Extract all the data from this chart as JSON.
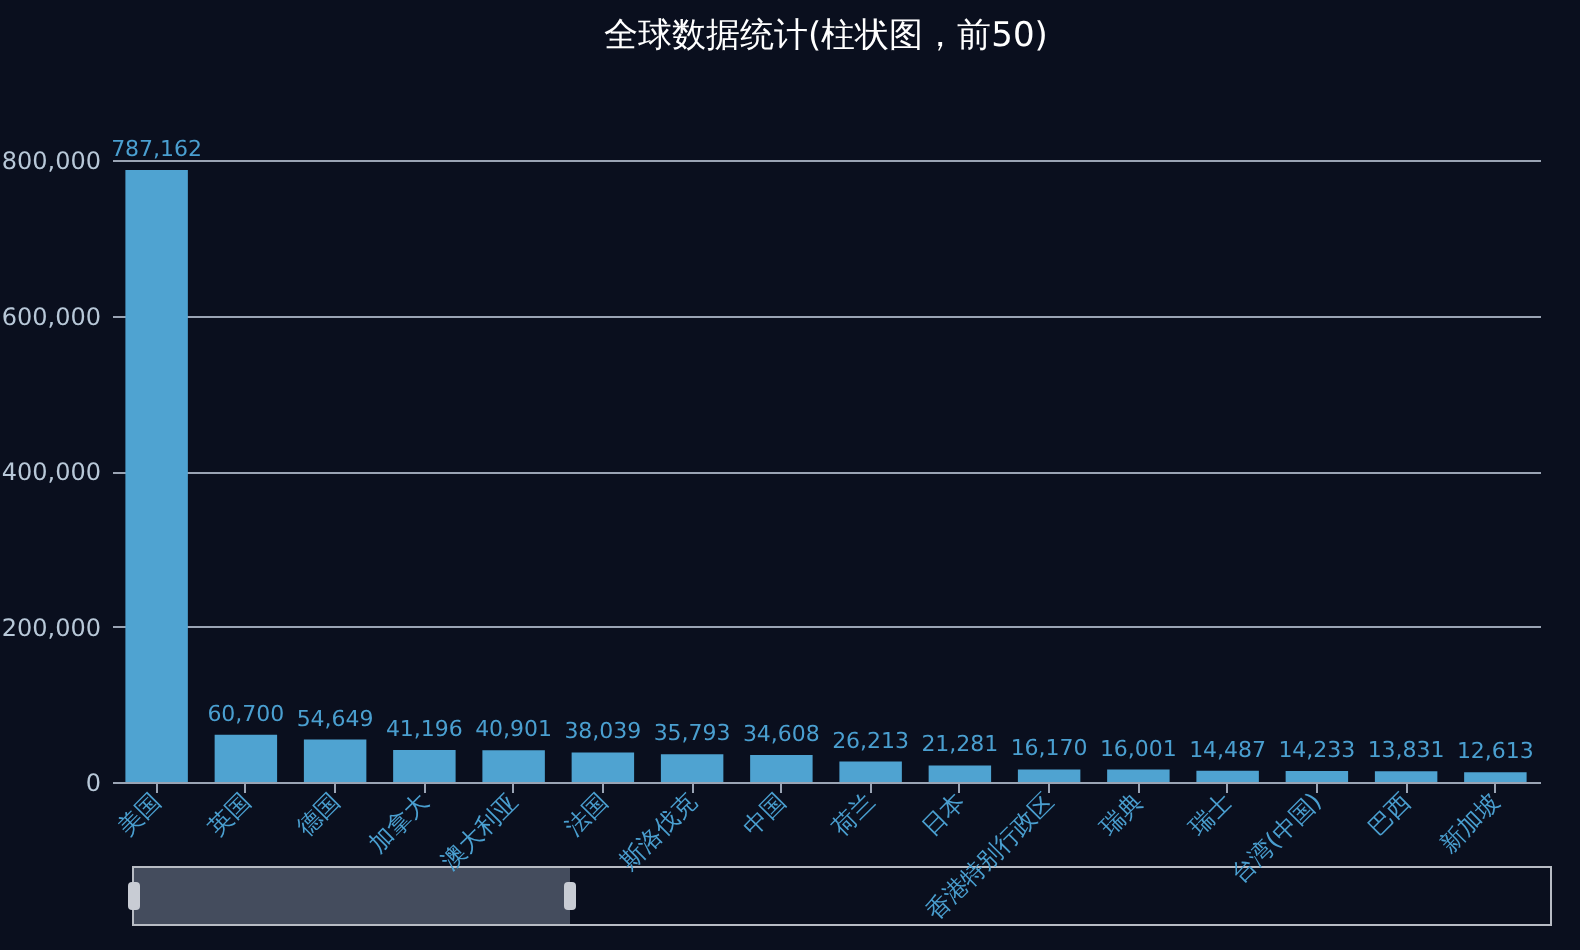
{
  "chart_data": {
    "type": "bar",
    "title": "全球数据统计(柱状图，前50)",
    "categories": [
      "美国",
      "英国",
      "德国",
      "加拿大",
      "澳大利亚",
      "法国",
      "斯洛伐克",
      "中国",
      "荷兰",
      "日本",
      "香港特别行政区",
      "瑞典",
      "瑞士",
      "台湾(中国)",
      "巴西",
      "新加坡"
    ],
    "values": [
      787162,
      60700,
      54649,
      41196,
      40901,
      38039,
      35793,
      34608,
      26213,
      21281,
      16170,
      16001,
      14487,
      14233,
      13831,
      12613
    ],
    "value_labels": [
      "787,162",
      "60,700",
      "54,649",
      "41,196",
      "40,901",
      "38,039",
      "35,793",
      "34,608",
      "26,213",
      "21,281",
      "16,170",
      "16,001",
      "14,487",
      "14,233",
      "13,831",
      "12,613"
    ],
    "color": "#4fa3d1",
    "ylim": [
      0,
      800000
    ],
    "yticks": [
      0,
      {
        "value": 200000,
        "label": "200,000"
      },
      {
        "value": 400000,
        "label": "400,000"
      },
      {
        "value": 600000,
        "label": "600,000"
      },
      {
        "value": 800000,
        "label": "800,000"
      }
    ],
    "grid": "y"
  }
}
